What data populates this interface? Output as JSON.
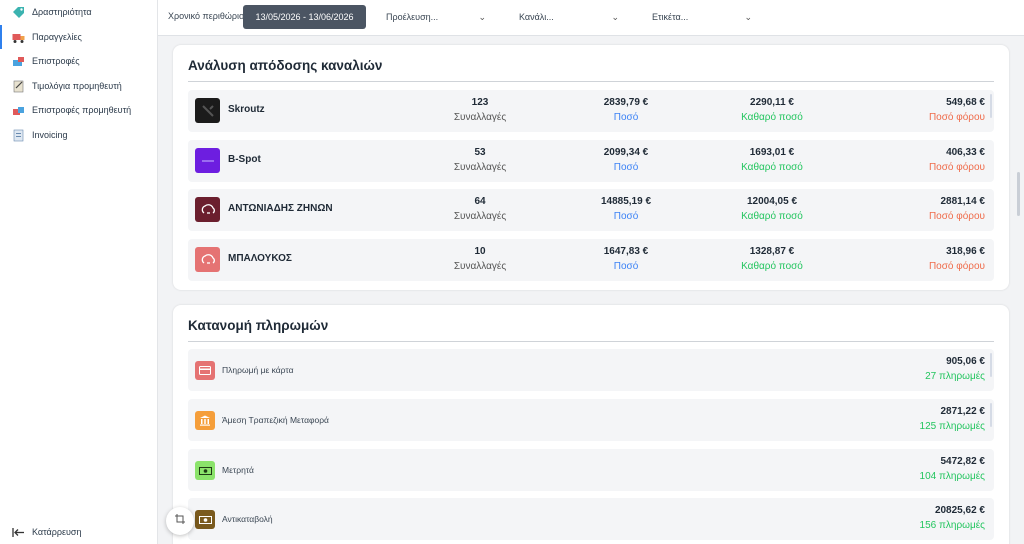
{
  "sidebar": {
    "items": [
      {
        "label": "Δραστηριότητα",
        "icon": "tag-icon"
      },
      {
        "label": "Παραγγελίες",
        "icon": "truck-icon"
      },
      {
        "label": "Επιστροφές",
        "icon": "return-icon"
      },
      {
        "label": "Τιμολόγια προμηθευτή",
        "icon": "clipboard-icon"
      },
      {
        "label": "Επιστροφές προμηθευτή",
        "icon": "supplier-return-icon"
      },
      {
        "label": "Invoicing",
        "icon": "invoice-icon"
      }
    ],
    "active_index": 1,
    "collapse_label": "Κατάρρευση"
  },
  "topbar": {
    "period_label": "Χρονικό περιθώριο:",
    "period_value": "13/05/2026 - 13/06/2026",
    "origin_placeholder": "Προέλευση...",
    "channel_placeholder": "Κανάλι...",
    "tag_placeholder": "Ετικέτα..."
  },
  "channels": {
    "title": "Ανάλυση απόδοσης καναλιών",
    "labels": {
      "transactions": "Συναλλαγές",
      "amount": "Ποσό",
      "net": "Καθαρό ποσό",
      "tax": "Ποσό φόρου"
    },
    "rows": [
      {
        "name": "Skroutz",
        "transactions": "123",
        "amount": "2839,79 €",
        "net": "2290,11 €",
        "tax": "549,68 €",
        "logo_color": "#1b1b1b"
      },
      {
        "name": "B-Spot",
        "transactions": "53",
        "amount": "2099,34 €",
        "net": "1693,01 €",
        "tax": "406,33 €",
        "logo_color": "#6d1ee0"
      },
      {
        "name": "ΑΝΤΩΝΙΑΔΗΣ ΖΗΝΩΝ",
        "transactions": "64",
        "amount": "14885,19 €",
        "net": "12004,05 €",
        "tax": "2881,14 €",
        "logo_color": "#6b1f2e"
      },
      {
        "name": "ΜΠΑΛΟΥΚΟΣ",
        "transactions": "10",
        "amount": "1647,83 €",
        "net": "1328,87 €",
        "tax": "318,96 €",
        "logo_color": "#e57373"
      }
    ]
  },
  "payments": {
    "title": "Κατανομή πληρωμών",
    "rows": [
      {
        "name": "Πληρωμή με κάρτα",
        "amount": "905,06 €",
        "count": "27 πληρωμές",
        "icon": "credit-card-icon",
        "color": "#e57373"
      },
      {
        "name": "Άμεση Τραπεζική Μεταφορά",
        "amount": "2871,22 €",
        "count": "125 πληρωμές",
        "icon": "bank-icon",
        "color": "#f59e3a"
      },
      {
        "name": "Μετρητά",
        "amount": "5472,82 €",
        "count": "104 πληρωμές",
        "icon": "cash-icon",
        "color": "#8be36b"
      },
      {
        "name": "Αντικαταβολή",
        "amount": "20825,62 €",
        "count": "156 πληρωμές",
        "icon": "cash-on-delivery-icon",
        "color": "#7a5a1e"
      }
    ]
  },
  "colors": {
    "amount": "#3b82f6",
    "net": "#22c55e",
    "tax": "#ef6b4a",
    "count": "#22c55e"
  }
}
